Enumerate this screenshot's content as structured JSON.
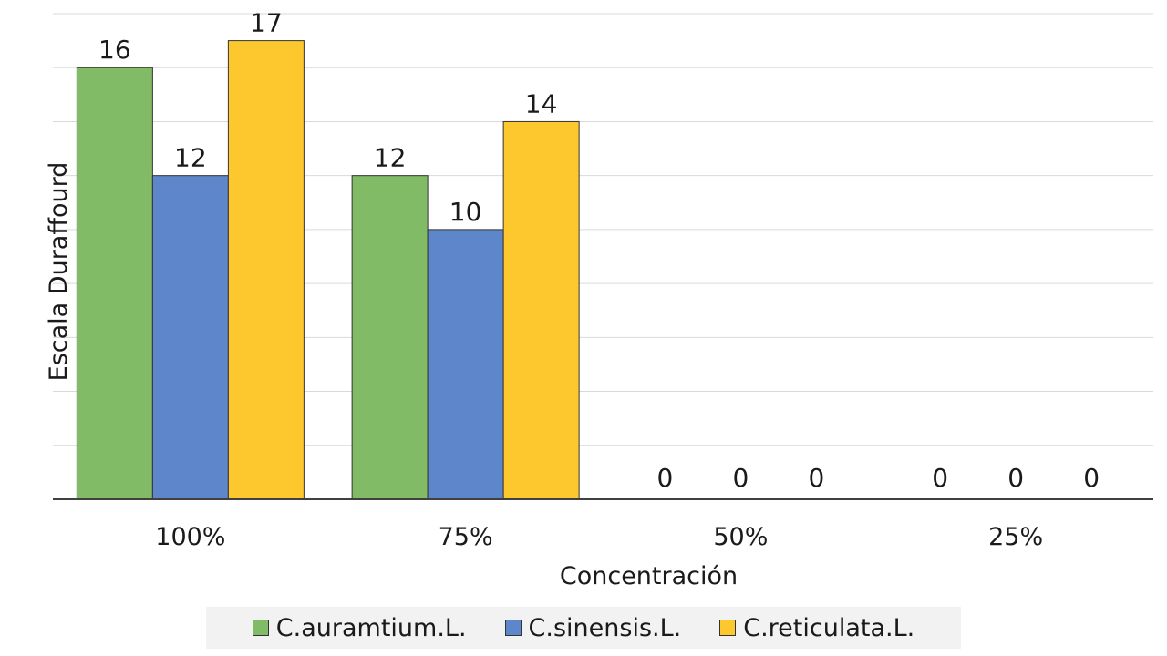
{
  "chart_data": {
    "type": "bar",
    "title": "",
    "xlabel": "Concentración",
    "ylabel": "Escala Duraffourd",
    "categories": [
      "100%",
      "75%",
      "50%",
      "25%"
    ],
    "series": [
      {
        "name": "C.auramtium.L.",
        "color": "#82bb65",
        "values": [
          16,
          12,
          0,
          0
        ]
      },
      {
        "name": "C.sinensis.L.",
        "color": "#5d86cb",
        "values": [
          12,
          10,
          0,
          0
        ]
      },
      {
        "name": "C.reticulata.L.",
        "color": "#fdc82d",
        "values": [
          17,
          14,
          0,
          0
        ]
      }
    ],
    "ylim": [
      0,
      18
    ],
    "grid": true,
    "legend_position": "bottom",
    "data_labels": true
  }
}
